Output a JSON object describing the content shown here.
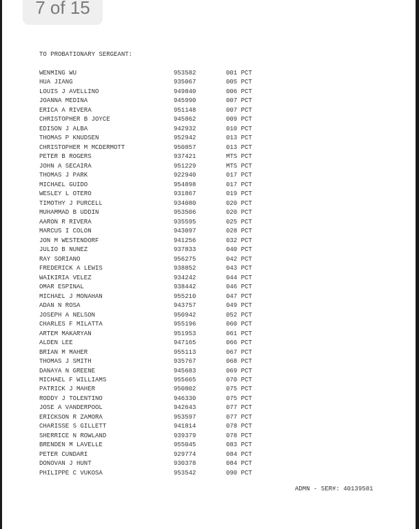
{
  "page_indicator": "7 of 15",
  "heading": "TO PROBATIONARY SERGEANT:",
  "rows": [
    {
      "name": "WENMING WU",
      "id": "953582",
      "command": "001 PCT"
    },
    {
      "name": "HUA JIANG",
      "id": "935067",
      "command": "005 PCT"
    },
    {
      "name": "LOUIS J AVELLINO",
      "id": "949840",
      "command": "006 PCT"
    },
    {
      "name": "JOANNA MEDINA",
      "id": "945990",
      "command": "007 PCT"
    },
    {
      "name": "ERICA A RIVERA",
      "id": "951148",
      "command": "007 PCT"
    },
    {
      "name": "CHRISTOPHER B JOYCE",
      "id": "945862",
      "command": "009 PCT"
    },
    {
      "name": "EDISON J ALBA",
      "id": "942932",
      "command": "010 PCT"
    },
    {
      "name": "THOMAS P KNUDSEN",
      "id": "952942",
      "command": "013 PCT"
    },
    {
      "name": "CHRISTOPHER M MCDERMOTT",
      "id": "950857",
      "command": "013 PCT"
    },
    {
      "name": "PETER B ROGERS",
      "id": "937421",
      "command": "MTS PCT"
    },
    {
      "name": "JOHN A SECAIRA",
      "id": "951229",
      "command": "MTS PCT"
    },
    {
      "name": "THOMAS J PARK",
      "id": "922940",
      "command": "017 PCT"
    },
    {
      "name": "MICHAEL GUIDO",
      "id": "954898",
      "command": "017 PCT"
    },
    {
      "name": "WESLEY L OTERO",
      "id": "931867",
      "command": "019 PCT"
    },
    {
      "name": "TIMOTHY J PURCELL",
      "id": "934080",
      "command": "020 PCT"
    },
    {
      "name": "MUHAMMAD B UDDIN",
      "id": "953506",
      "command": "020 PCT"
    },
    {
      "name": "AARON R RIVERA",
      "id": "935595",
      "command": "025 PCT"
    },
    {
      "name": "MARCUS I COLON",
      "id": "943097",
      "command": "028 PCT"
    },
    {
      "name": "JON M WESTENDORF",
      "id": "941256",
      "command": "032 PCT"
    },
    {
      "name": "JULIO B NUNEZ",
      "id": "937833",
      "command": "040 PCT"
    },
    {
      "name": "RAY SORIANO",
      "id": "956275",
      "command": "042 PCT"
    },
    {
      "name": "FREDERICK A LEWIS",
      "id": "938852",
      "command": "043 PCT"
    },
    {
      "name": "WAIKIRIA VELEZ",
      "id": "934242",
      "command": "044 PCT"
    },
    {
      "name": "OMAR ESPINAL",
      "id": "938442",
      "command": "046 PCT"
    },
    {
      "name": "MICHAEL J MONAHAN",
      "id": "955210",
      "command": "047 PCT"
    },
    {
      "name": "ADAN N ROSA",
      "id": "943757",
      "command": "049 PCT"
    },
    {
      "name": "JOSEPH A NELSON",
      "id": "950942",
      "command": "052 PCT"
    },
    {
      "name": "CHARLES F MILATTA",
      "id": "955196",
      "command": "060 PCT"
    },
    {
      "name": "ARTEM MAKARYAN",
      "id": "951953",
      "command": "061 PCT"
    },
    {
      "name": "ALDEN LEE",
      "id": "947165",
      "command": "066 PCT"
    },
    {
      "name": "BRIAN M MAHER",
      "id": "955113",
      "command": "067 PCT"
    },
    {
      "name": "THOMAS J SMITH",
      "id": "935767",
      "command": "068 PCT"
    },
    {
      "name": "DANAYA N GREENE",
      "id": "945683",
      "command": "069 PCT"
    },
    {
      "name": "MICHAEL F WILLIAMS",
      "id": "955665",
      "command": "070 PCT"
    },
    {
      "name": "PATRICK J MAHER",
      "id": "950802",
      "command": "075 PCT"
    },
    {
      "name": "RODDY J TOLENTINO",
      "id": "946330",
      "command": "075 PCT"
    },
    {
      "name": "JOSE A VANDERPOOL",
      "id": "942643",
      "command": "077 PCT"
    },
    {
      "name": "ERICKSON R ZAMORA",
      "id": "953597",
      "command": "077 PCT"
    },
    {
      "name": "CHARISSE S GILLETT",
      "id": "941814",
      "command": "078 PCT"
    },
    {
      "name": "SHERRICE N ROWLAND",
      "id": "939379",
      "command": "078 PCT"
    },
    {
      "name": "BRENDEN M LAVELLE",
      "id": "955045",
      "command": "083 PCT"
    },
    {
      "name": "PETER CUNDARI",
      "id": "929774",
      "command": "084 PCT"
    },
    {
      "name": "DONOVAN J HUNT",
      "id": "930378",
      "command": "084 PCT"
    },
    {
      "name": "PHILIPPE C VUKOSA",
      "id": "953542",
      "command": "090 PCT"
    }
  ],
  "footer": "ADMN - SER#: 40139581"
}
